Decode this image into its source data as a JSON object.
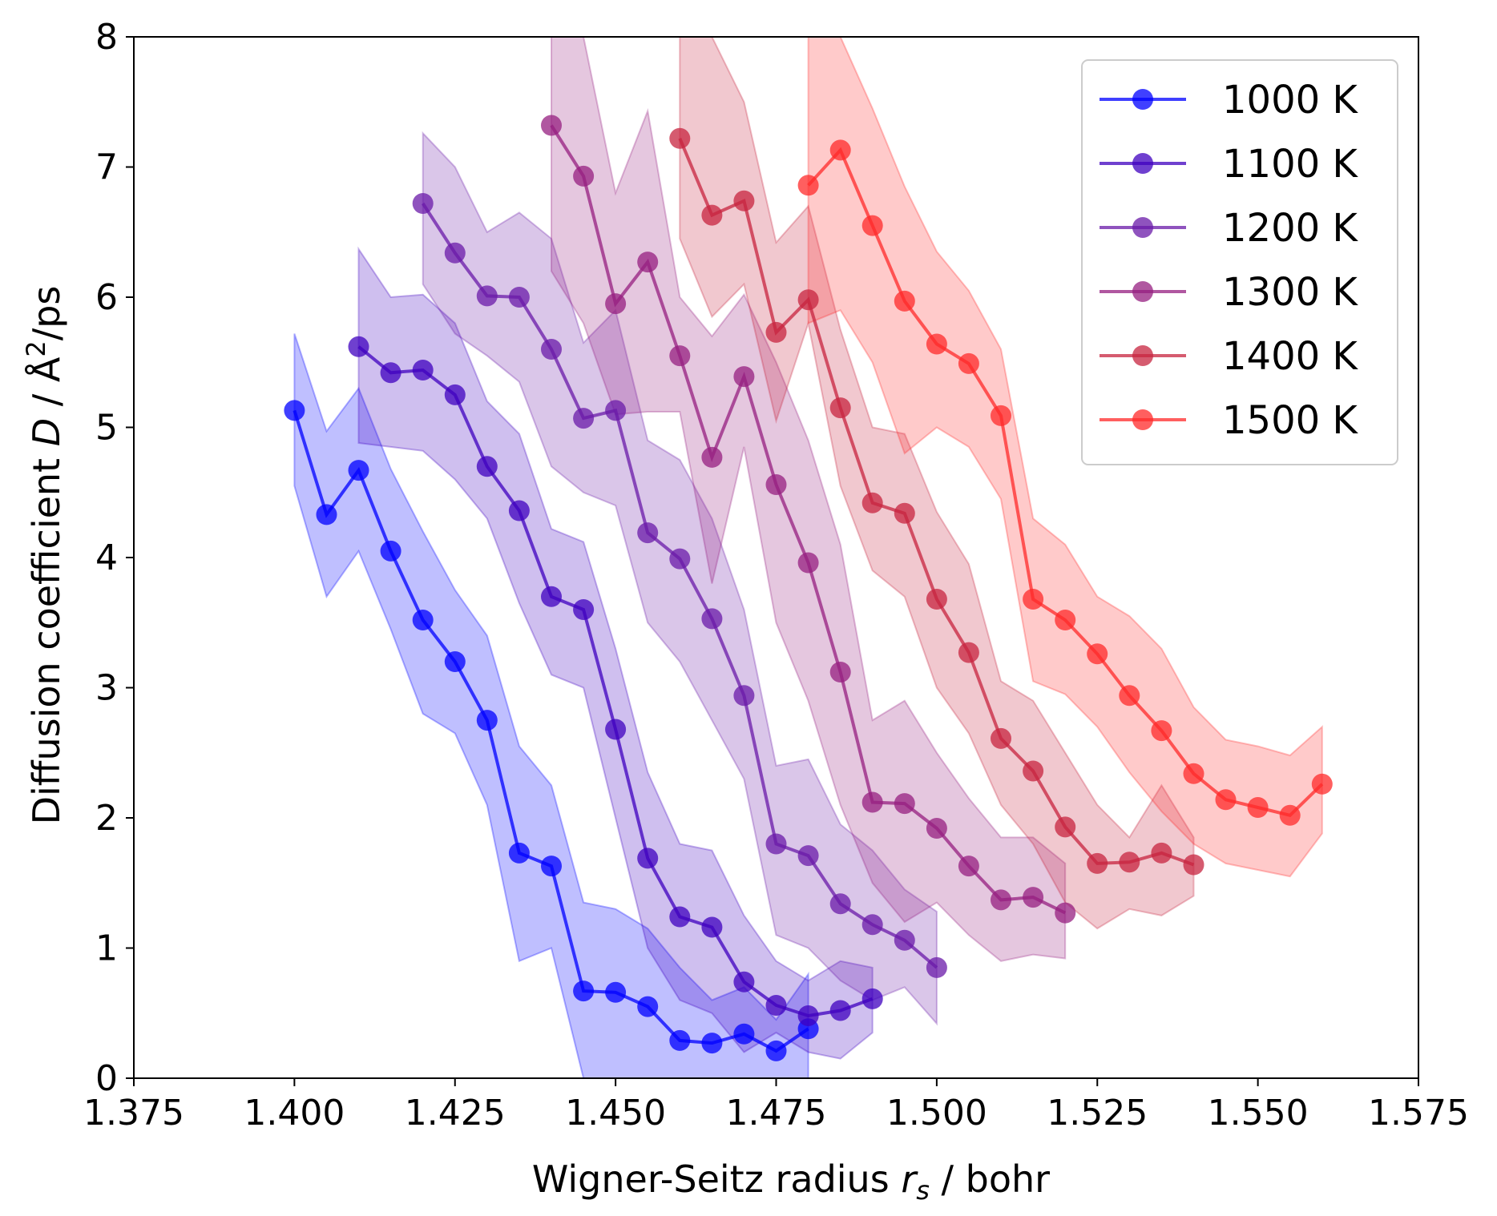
{
  "chart_data": {
    "type": "line",
    "title": "",
    "xlabel": {
      "prefix": "Wigner-Seitz radius ",
      "var": "r",
      "sub": "s",
      "suffix": " / bohr"
    },
    "ylabel": {
      "prefix": "Diffusion coefficient ",
      "var": "D",
      "mid": " / Å",
      "sup": "2",
      "suffix": "/ps"
    },
    "xlim": [
      1.375,
      1.575
    ],
    "ylim": [
      0,
      8
    ],
    "xticks": [
      "1.375",
      "1.400",
      "1.425",
      "1.450",
      "1.475",
      "1.500",
      "1.525",
      "1.550",
      "1.575"
    ],
    "yticks": [
      "0",
      "1",
      "2",
      "3",
      "4",
      "5",
      "6",
      "7",
      "8"
    ],
    "grid": false,
    "legend_position": "top-right",
    "series": [
      {
        "name": "1000 K",
        "color": "#0000ff",
        "x": [
          1.4,
          1.405,
          1.41,
          1.415,
          1.42,
          1.425,
          1.43,
          1.435,
          1.44,
          1.445,
          1.45,
          1.455,
          1.46,
          1.465,
          1.47,
          1.475,
          1.48
        ],
        "values": [
          5.13,
          4.33,
          4.67,
          4.05,
          3.52,
          3.2,
          2.75,
          1.73,
          1.63,
          0.67,
          0.66,
          0.55,
          0.29,
          0.27,
          0.34,
          0.21,
          0.38
        ],
        "lower": [
          4.55,
          3.7,
          4.05,
          3.45,
          2.8,
          2.65,
          2.1,
          0.9,
          1.0,
          0.0,
          0.0,
          0.0,
          0.0,
          0.0,
          0.0,
          0.0,
          0.0
        ],
        "upper": [
          5.72,
          4.97,
          5.3,
          4.68,
          4.2,
          3.75,
          3.4,
          2.55,
          2.25,
          1.35,
          1.3,
          1.15,
          0.85,
          0.6,
          0.7,
          0.45,
          0.8
        ]
      },
      {
        "name": "1100 K",
        "color": "#3f00bf",
        "x": [
          1.41,
          1.415,
          1.42,
          1.425,
          1.43,
          1.435,
          1.44,
          1.445,
          1.45,
          1.455,
          1.46,
          1.465,
          1.47,
          1.475,
          1.48,
          1.485,
          1.49
        ],
        "values": [
          5.62,
          5.42,
          5.44,
          5.25,
          4.7,
          4.36,
          3.7,
          3.6,
          2.68,
          1.69,
          1.24,
          1.16,
          0.74,
          0.56,
          0.48,
          0.52,
          0.61
        ],
        "lower": [
          4.88,
          4.85,
          4.82,
          4.6,
          4.3,
          3.65,
          3.1,
          3.0,
          2.0,
          1.0,
          0.6,
          0.5,
          0.2,
          0.35,
          0.2,
          0.15,
          0.35
        ],
        "upper": [
          6.37,
          6.0,
          6.02,
          5.8,
          5.2,
          4.95,
          4.22,
          4.12,
          3.3,
          2.35,
          1.8,
          1.75,
          1.25,
          0.9,
          0.75,
          0.9,
          0.85
        ]
      },
      {
        "name": "1200 K",
        "color": "#6a1aa8",
        "x": [
          1.42,
          1.425,
          1.43,
          1.435,
          1.44,
          1.445,
          1.45,
          1.455,
          1.46,
          1.465,
          1.47,
          1.475,
          1.48,
          1.485,
          1.49,
          1.495,
          1.5
        ],
        "values": [
          6.72,
          6.34,
          6.01,
          6.0,
          5.6,
          5.07,
          5.13,
          4.19,
          3.99,
          3.53,
          2.94,
          1.8,
          1.71,
          1.34,
          1.18,
          1.06,
          0.85
        ],
        "lower": [
          6.1,
          5.72,
          5.55,
          5.35,
          4.7,
          4.5,
          4.4,
          3.5,
          3.2,
          2.75,
          2.3,
          1.1,
          1.0,
          0.75,
          0.6,
          0.7,
          0.42
        ],
        "upper": [
          7.26,
          7.0,
          6.5,
          6.65,
          6.45,
          5.65,
          5.9,
          4.9,
          4.75,
          4.3,
          3.6,
          2.4,
          2.45,
          1.95,
          1.75,
          1.45,
          1.28
        ]
      },
      {
        "name": "1300 K",
        "color": "#961f80",
        "x": [
          1.44,
          1.445,
          1.45,
          1.455,
          1.46,
          1.465,
          1.47,
          1.475,
          1.48,
          1.485,
          1.49,
          1.495,
          1.5,
          1.505,
          1.51,
          1.515,
          1.52
        ],
        "values": [
          7.32,
          6.93,
          5.95,
          6.27,
          5.55,
          4.77,
          5.39,
          4.56,
          3.96,
          3.12,
          2.12,
          2.11,
          1.92,
          1.63,
          1.37,
          1.39,
          1.27
        ],
        "lower": [
          6.2,
          5.8,
          5.1,
          5.12,
          5.12,
          3.8,
          4.85,
          3.5,
          2.9,
          2.1,
          1.5,
          1.2,
          1.35,
          1.1,
          0.9,
          0.95,
          0.92
        ],
        "upper": [
          8.0,
          8.0,
          6.8,
          7.43,
          6.0,
          5.7,
          6.02,
          5.5,
          4.9,
          4.1,
          2.75,
          2.9,
          2.5,
          2.15,
          1.85,
          1.85,
          1.65
        ]
      },
      {
        "name": "1400 K",
        "color": "#c7243f",
        "x": [
          1.46,
          1.465,
          1.47,
          1.475,
          1.48,
          1.485,
          1.49,
          1.495,
          1.5,
          1.505,
          1.51,
          1.515,
          1.52,
          1.525,
          1.53,
          1.535,
          1.54
        ],
        "values": [
          7.22,
          6.63,
          6.74,
          5.73,
          5.98,
          5.15,
          4.42,
          4.34,
          3.68,
          3.27,
          2.61,
          2.36,
          1.93,
          1.65,
          1.66,
          1.73,
          1.64
        ],
        "lower": [
          6.45,
          5.85,
          6.1,
          5.05,
          5.8,
          4.55,
          3.9,
          3.7,
          3.0,
          2.65,
          2.1,
          1.8,
          1.35,
          1.15,
          1.3,
          1.25,
          1.4
        ],
        "upper": [
          8.0,
          8.0,
          7.5,
          6.42,
          6.7,
          5.75,
          5.0,
          4.95,
          4.35,
          3.95,
          3.05,
          2.9,
          2.5,
          2.1,
          1.85,
          2.25,
          1.85
        ]
      },
      {
        "name": "1500 K",
        "color": "#ff2a2a",
        "x": [
          1.48,
          1.485,
          1.49,
          1.495,
          1.5,
          1.505,
          1.51,
          1.515,
          1.52,
          1.525,
          1.53,
          1.535,
          1.54,
          1.545,
          1.55,
          1.555,
          1.56
        ],
        "values": [
          6.86,
          7.13,
          6.55,
          5.97,
          5.64,
          5.49,
          5.09,
          3.68,
          3.52,
          3.26,
          2.94,
          2.67,
          2.34,
          2.14,
          2.08,
          2.02,
          2.26
        ],
        "lower": [
          5.8,
          5.9,
          5.5,
          4.8,
          5.0,
          4.85,
          4.45,
          3.05,
          2.95,
          2.7,
          2.35,
          2.05,
          1.8,
          1.65,
          1.6,
          1.55,
          1.88
        ],
        "upper": [
          8.0,
          8.0,
          7.45,
          6.85,
          6.35,
          6.05,
          5.6,
          4.3,
          4.1,
          3.7,
          3.55,
          3.3,
          2.85,
          2.6,
          2.55,
          2.48,
          2.7
        ]
      }
    ]
  }
}
